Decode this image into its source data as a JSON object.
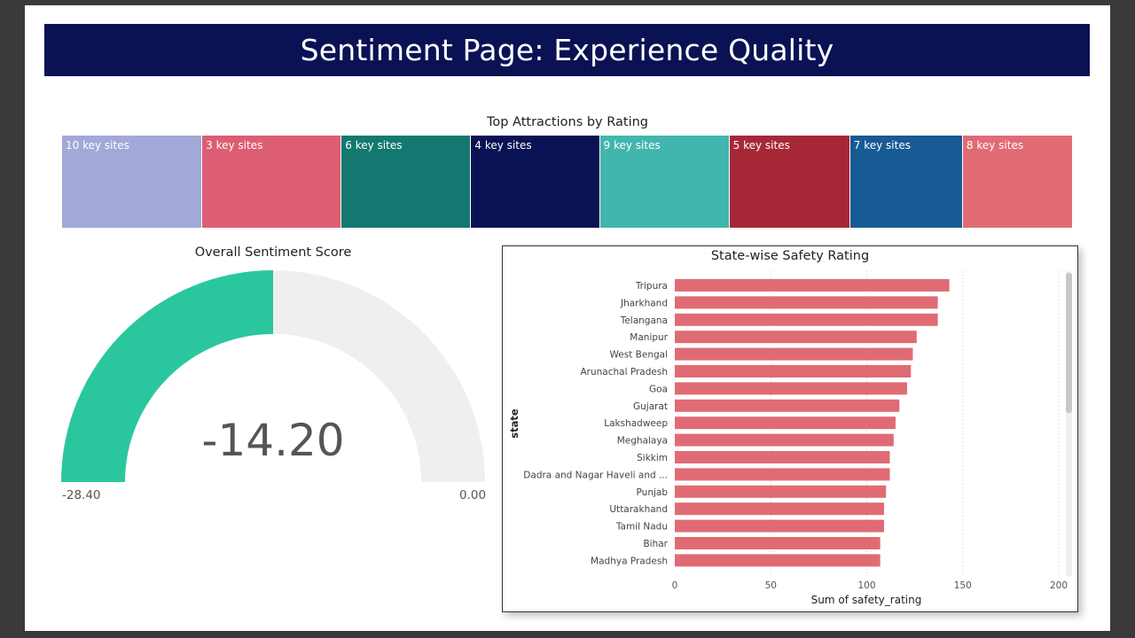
{
  "header": {
    "title": "Sentiment Page: Experience Quality"
  },
  "treemap": {
    "title": "Top Attractions by Rating",
    "tiles": [
      {
        "label": "10 key sites",
        "value": 158,
        "color": "#a2a8d8"
      },
      {
        "label": "3 key sites",
        "value": 157,
        "color": "#dd5e72"
      },
      {
        "label": "6 key sites",
        "value": 146,
        "color": "#137970"
      },
      {
        "label": "4 key sites",
        "value": 145,
        "color": "#0b1254"
      },
      {
        "label": "9 key sites",
        "value": 146,
        "color": "#41b6ae"
      },
      {
        "label": "5 key sites",
        "value": 136,
        "color": "#a62836"
      },
      {
        "label": "7 key sites",
        "value": 127,
        "color": "#185a94"
      },
      {
        "label": "8 key sites",
        "value": 124,
        "color": "#e06b75"
      }
    ]
  },
  "gauge": {
    "title": "Overall Sentiment Score",
    "value": -14.2,
    "min": -28.4,
    "max": 0,
    "value_label": "-14.20",
    "min_label": "-28.40",
    "max_label": "0.00",
    "fill_color": "#2ac79f",
    "track_color": "#f0eff0"
  },
  "chart_data": {
    "type": "bar",
    "orientation": "horizontal",
    "title": "State-wise Safety Rating",
    "xlabel": "Sum of safety_rating",
    "ylabel": "state",
    "xlim": [
      0,
      200
    ],
    "xticks": [
      0,
      50,
      100,
      150,
      200
    ],
    "bar_color": "#e06b75",
    "categories": [
      "Tripura",
      "Jharkhand",
      "Telangana",
      "Manipur",
      "West Bengal",
      "Arunachal Pradesh",
      "Goa",
      "Gujarat",
      "Lakshadweep",
      "Meghalaya",
      "Sikkim",
      "Dadra and Nagar Haveli and ...",
      "Punjab",
      "Uttarakhand",
      "Tamil Nadu",
      "Bihar",
      "Madhya Pradesh"
    ],
    "values": [
      143,
      137,
      137,
      126,
      124,
      123,
      121,
      117,
      115,
      114,
      112,
      112,
      110,
      109,
      109,
      107,
      107
    ]
  }
}
